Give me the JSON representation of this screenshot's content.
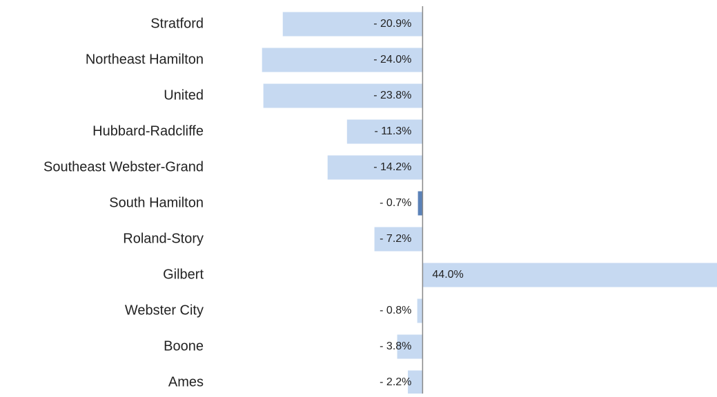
{
  "chart_data": {
    "type": "barh",
    "categories": [
      "Stratford",
      "Northeast Hamilton",
      "United",
      "Hubbard-Radcliffe",
      "Southeast Webster-Grand",
      "South Hamilton",
      "Roland-Story",
      "Gilbert",
      "Webster City",
      "Boone",
      "Ames"
    ],
    "values": [
      -20.9,
      -24.0,
      -23.8,
      -11.3,
      -14.2,
      -0.7,
      -7.2,
      44.0,
      -0.8,
      -3.8,
      -2.2
    ],
    "value_labels": [
      "- 20.9%",
      "- 24.0%",
      "- 23.8%",
      "- 11.3%",
      "- 14.2%",
      "- 0.7%",
      "- 7.2%",
      "44.0%",
      "- 0.8%",
      "- 3.8%",
      "- 2.2%"
    ],
    "colors": [
      "#c6d9f1",
      "#c6d9f1",
      "#c6d9f1",
      "#c6d9f1",
      "#c6d9f1",
      "#5b82b8",
      "#c6d9f1",
      "#c6d9f1",
      "#c6d9f1",
      "#c6d9f1",
      "#c6d9f1"
    ],
    "xlim": [
      -25,
      44
    ]
  }
}
